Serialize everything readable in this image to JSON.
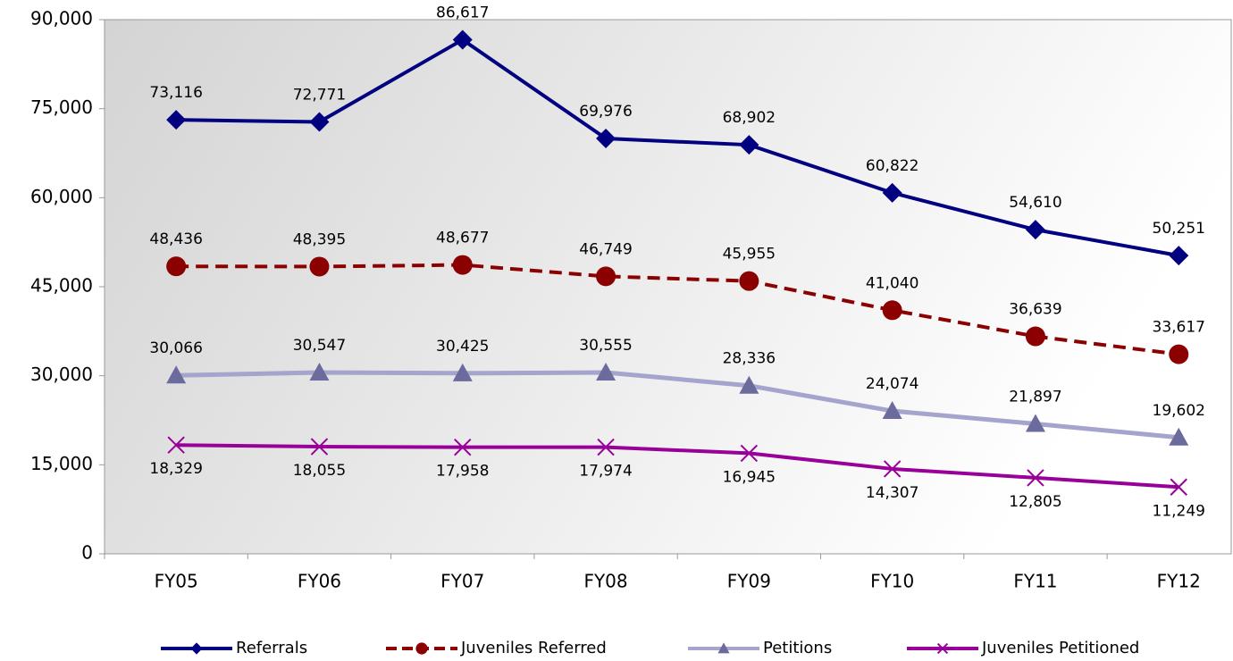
{
  "chart_data": {
    "type": "line",
    "categories": [
      "FY05",
      "FY06",
      "FY07",
      "FY08",
      "FY09",
      "FY10",
      "FY11",
      "FY12"
    ],
    "ylim": [
      0,
      90000
    ],
    "yticks": [
      0,
      {
        "value": 15000,
        "label": "15,000"
      },
      {
        "value": 30000,
        "label": "30,000"
      },
      {
        "value": 45000,
        "label": "45,000"
      },
      {
        "value": 60000,
        "label": "60,000"
      },
      {
        "value": 75000,
        "label": "75,000"
      },
      {
        "value": 90000,
        "label": "90,000"
      }
    ],
    "grid": false,
    "legend": "bottom",
    "series": [
      {
        "name": "Referrals",
        "color": "#000080",
        "marker": "diamond",
        "dashed": false,
        "label_position": "above",
        "values": [
          73116,
          72771,
          86617,
          69976,
          68902,
          60822,
          54610,
          50251
        ],
        "value_labels": [
          "73,116",
          "72,771",
          "86,617",
          "69,976",
          "68,902",
          "60,822",
          "54,610",
          "50,251"
        ]
      },
      {
        "name": "Juveniles Referred",
        "color": "#8b0000",
        "marker": "circle",
        "dashed": true,
        "label_position": "above",
        "values": [
          48436,
          48395,
          48677,
          46749,
          45955,
          41040,
          36639,
          33617
        ],
        "value_labels": [
          "48,436",
          "48,395",
          "48,677",
          "46,749",
          "45,955",
          "41,040",
          "36,639",
          "33,617"
        ]
      },
      {
        "name": "Petitions",
        "color": "#a4a4cc",
        "marker": "triangle",
        "marker_color": "#6b6b9e",
        "dashed": false,
        "label_position": "above",
        "values": [
          30066,
          30547,
          30425,
          30555,
          28336,
          24074,
          21897,
          19602
        ],
        "value_labels": [
          "30,066",
          "30,547",
          "30,425",
          "30,555",
          "28,336",
          "24,074",
          "21,897",
          "19,602"
        ]
      },
      {
        "name": "Juveniles Petitioned",
        "color": "#990099",
        "marker": "x",
        "dashed": false,
        "label_position": "below",
        "values": [
          18329,
          18055,
          17958,
          17974,
          16945,
          14307,
          12805,
          11249
        ],
        "value_labels": [
          "18,329",
          "18,055",
          "17,958",
          "17,974",
          "16,945",
          "14,307",
          "12,805",
          "11,249"
        ]
      }
    ]
  }
}
